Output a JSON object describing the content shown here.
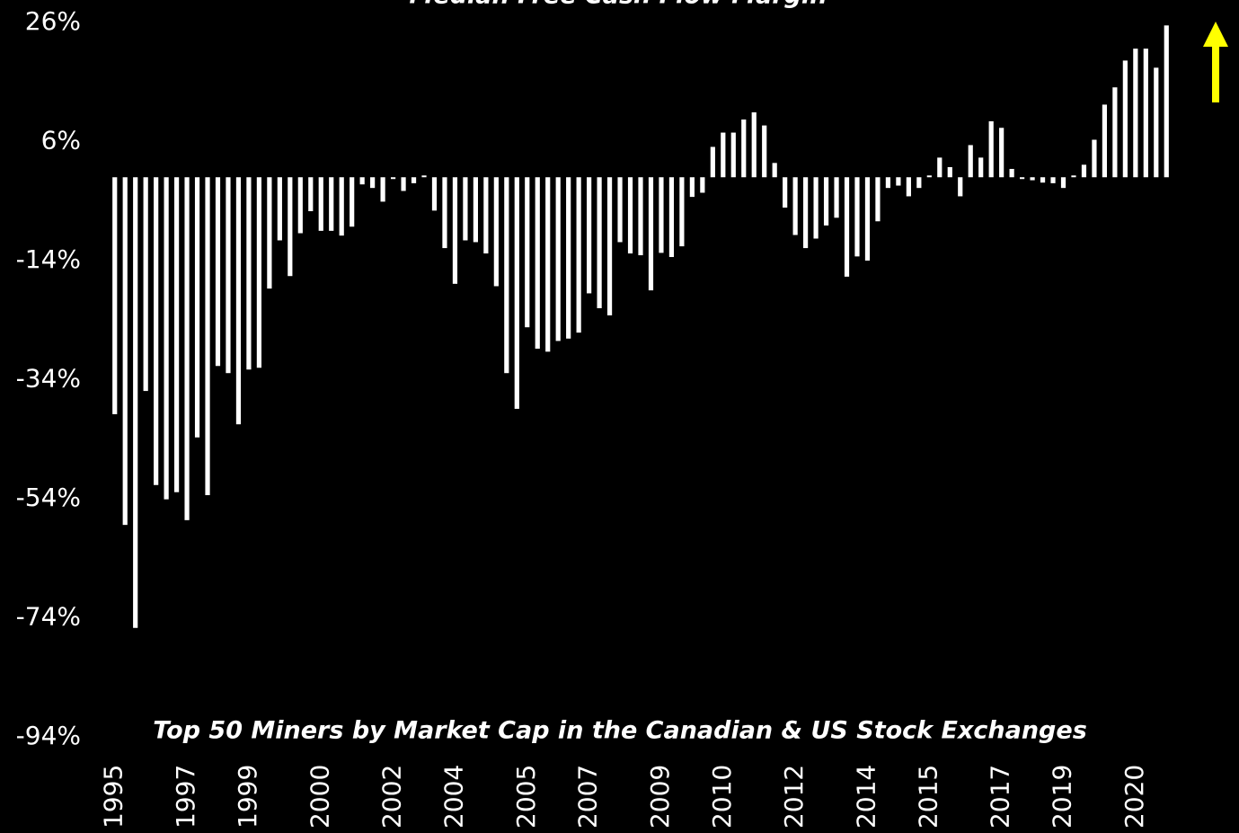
{
  "chart_data": {
    "type": "bar",
    "title": "Median Free Cash Flow Margin",
    "annotation": "Top 50 Miners by Market Cap in the Canadian & US Stock Exchanges",
    "color": "#ffffff",
    "categories": [
      "1995",
      null,
      null,
      null,
      null,
      null,
      null,
      "1997",
      null,
      null,
      null,
      null,
      null,
      "1999",
      null,
      null,
      null,
      null,
      null,
      null,
      "2000",
      null,
      null,
      null,
      null,
      null,
      null,
      "2002",
      null,
      null,
      null,
      null,
      null,
      "2004",
      null,
      null,
      null,
      null,
      null,
      null,
      "2005",
      null,
      null,
      null,
      null,
      null,
      "2007",
      null,
      null,
      null,
      null,
      null,
      null,
      "2009",
      null,
      null,
      null,
      null,
      null,
      "2010",
      null,
      null,
      null,
      null,
      null,
      null,
      "2012",
      null,
      null,
      null,
      null,
      null,
      null,
      "2014",
      null,
      null,
      null,
      null,
      null,
      "2015",
      null,
      null,
      null,
      null,
      null,
      null,
      "2017",
      null,
      null,
      null,
      null,
      null,
      "2019",
      null,
      null,
      null,
      null,
      null,
      null,
      "2020",
      null,
      null,
      null
    ],
    "values": [
      -39.8,
      -58.4,
      -75.7,
      -35.9,
      -51.7,
      -54.1,
      -52.9,
      -57.6,
      -43.7,
      -53.4,
      -31.7,
      -32.9,
      -41.5,
      -32.3,
      -32,
      -18.7,
      -10.6,
      -16.6,
      -9.4,
      -5.7,
      -9,
      -9,
      -9.8,
      -8.3,
      -1.2,
      -1.8,
      -4.1,
      -0.3,
      -2.3,
      -1,
      0.3,
      -5.6,
      -11.9,
      -17.9,
      -10.6,
      -10.9,
      -12.8,
      -18.3,
      -32.9,
      -38.9,
      -25.2,
      -28.8,
      -29.3,
      -27.5,
      -27.1,
      -26.1,
      -19.5,
      -22,
      -23.2,
      -10.9,
      -12.8,
      -13.1,
      -19,
      -12.7,
      -13.4,
      -11.6,
      -3.3,
      -2.6,
      5.1,
      7.5,
      7.5,
      9.7,
      10.9,
      8.7,
      2.4,
      -5.1,
      -9.7,
      -11.9,
      -10.3,
      -8.1,
      -6.8,
      -16.7,
      -13.3,
      -14,
      -7.4,
      -1.8,
      -1.4,
      -3.2,
      -1.8,
      0.3,
      3.3,
      1.7,
      -3.2,
      5.4,
      3.3,
      9.4,
      8.3,
      1.4,
      -0.3,
      -0.5,
      -0.9,
      -1,
      -1.8,
      0.3,
      2.1,
      6.3,
      12.2,
      15.1,
      19.6,
      21.6,
      21.6,
      18.4,
      25.5
    ],
    "ylim": [
      -94,
      26
    ],
    "yticks": [
      {
        "value": 26,
        "label": "26%"
      },
      {
        "value": 6,
        "label": "6%"
      },
      {
        "value": -14,
        "label": "-14%"
      },
      {
        "value": -34,
        "label": "-34%"
      },
      {
        "value": -54,
        "label": "-54%"
      },
      {
        "value": -74,
        "label": "-74%"
      },
      {
        "value": -94,
        "label": "-94%"
      }
    ],
    "grid": false
  }
}
